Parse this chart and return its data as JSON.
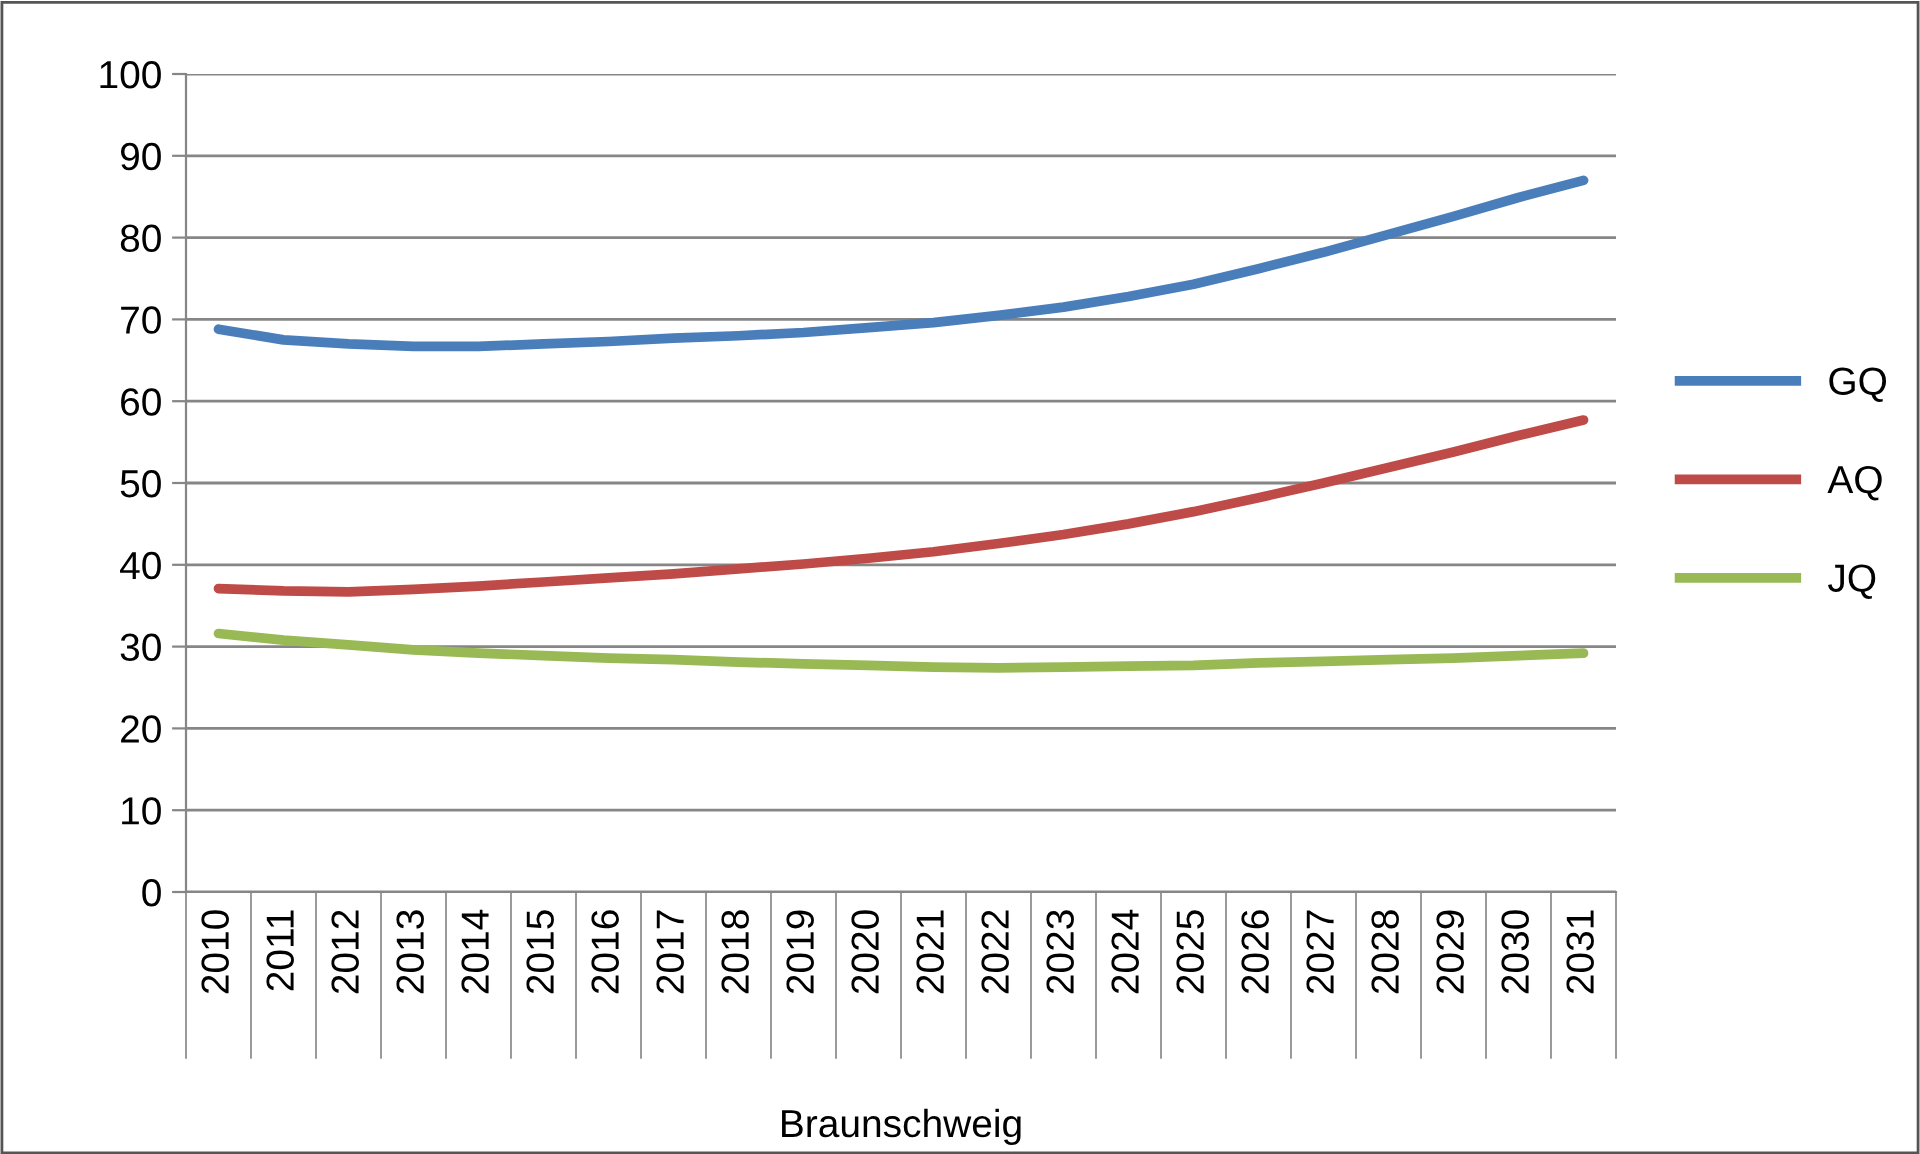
{
  "chart_data": {
    "type": "line",
    "xlabel": "Braunschweig",
    "categories": [
      "2010",
      "2011",
      "2012",
      "2013",
      "2014",
      "2015",
      "2016",
      "2017",
      "2018",
      "2019",
      "2020",
      "2021",
      "2022",
      "2023",
      "2024",
      "2025",
      "2026",
      "2027",
      "2028",
      "2029",
      "2030",
      "2031"
    ],
    "series": [
      {
        "name": "GQ",
        "color": "#4a7ebb",
        "values": [
          68.8,
          67.5,
          67.0,
          66.7,
          66.7,
          67.0,
          67.3,
          67.7,
          68.0,
          68.4,
          69.0,
          69.6,
          70.5,
          71.5,
          72.8,
          74.3,
          76.2,
          78.2,
          80.4,
          82.6,
          84.9,
          87.0
        ]
      },
      {
        "name": "AQ",
        "color": "#be4b48",
        "values": [
          37.1,
          36.8,
          36.7,
          37.0,
          37.4,
          37.9,
          38.4,
          38.9,
          39.5,
          40.1,
          40.8,
          41.6,
          42.6,
          43.7,
          45.0,
          46.5,
          48.2,
          50.0,
          51.9,
          53.8,
          55.8,
          57.7
        ]
      },
      {
        "name": "JQ",
        "color": "#98b954",
        "values": [
          31.6,
          30.8,
          30.2,
          29.6,
          29.2,
          28.9,
          28.6,
          28.4,
          28.1,
          27.9,
          27.7,
          27.5,
          27.4,
          27.5,
          27.6,
          27.7,
          28.0,
          28.2,
          28.4,
          28.6,
          28.9,
          29.2
        ]
      }
    ],
    "ylim": [
      0,
      100
    ],
    "yticks": [
      0,
      10,
      20,
      30,
      40,
      50,
      60,
      70,
      80,
      90,
      100
    ],
    "grid": "y",
    "legend": "right",
    "marker": "none",
    "line_style": "solid"
  }
}
